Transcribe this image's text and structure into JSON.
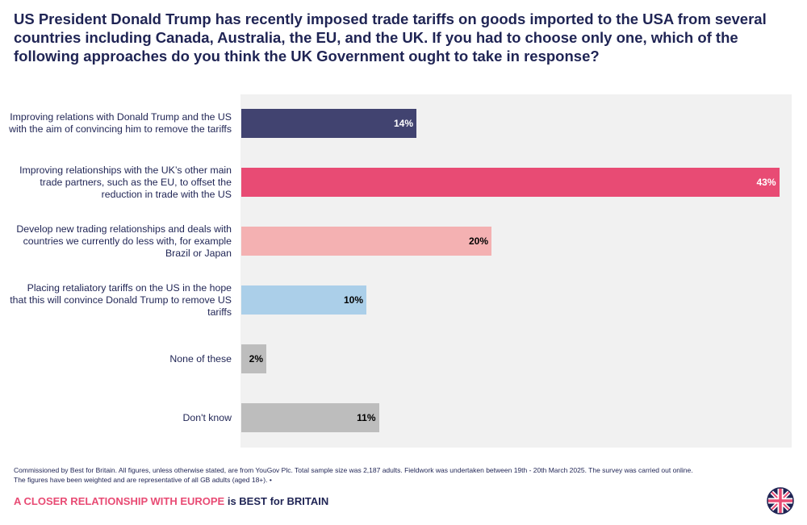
{
  "title": "US President Donald Trump has recently imposed trade tariffs on goods imported to the USA from several countries including Canada, Australia, the EU, and the UK. If you had to choose only one, which of the following approaches do you think the UK Government ought to take in response?",
  "chart_data": {
    "type": "bar",
    "orientation": "horizontal",
    "title": "US President Donald Trump has recently imposed trade tariffs on goods imported to the USA from several countries including Canada, Australia, the EU, and the UK. If you had to choose only one, which of the following approaches do you think the UK Government ought to take in response?",
    "categories": [
      "Improving relations with Donald Trump and the US with the aim of convincing him to remove the tariffs",
      "Improving relationships with the UK’s other main trade partners, such as the EU, to offset the reduction in trade with the US",
      "Develop new trading relationships and deals with countries we currently do less with, for example Brazil or Japan",
      "Placing retaliatory tariffs on the US in the hope that this will convince Donald Trump to remove US tariffs",
      "None of these",
      "Don't know"
    ],
    "values": [
      14,
      43,
      20,
      10,
      2,
      11
    ],
    "value_labels": [
      "14%",
      "43%",
      "20%",
      "10%",
      "2%",
      "11%"
    ],
    "colors": [
      "#414370",
      "#e84b74",
      "#f4b1b2",
      "#abcfe9",
      "#bdbdbd",
      "#bdbdbd"
    ],
    "label_colors": [
      "#ffffff",
      "#ffffff",
      "#000000",
      "#000000",
      "#000000",
      "#000000"
    ],
    "xlim": [
      0,
      44
    ],
    "xlabel": "",
    "ylabel": ""
  },
  "footer": {
    "note_line1": "Commissioned by Best for Britain. All figures, unless otherwise stated, are from YouGov Plc. Total sample size was 2,187 adults. Fieldwork was undertaken between 19th - 20th March 2025. The survey was carried out online.",
    "note_line2": "The figures have been weighted and are representative of all GB adults (aged 18+). •",
    "tagline_part1": "A CLOSER RELATIONSHIP WITH EUROPE",
    "tagline_part2": " is BEST for BRITAIN"
  },
  "colors": {
    "navy": "#1f2454",
    "pink": "#e84b74",
    "plot_background": "#f1f1f1"
  }
}
